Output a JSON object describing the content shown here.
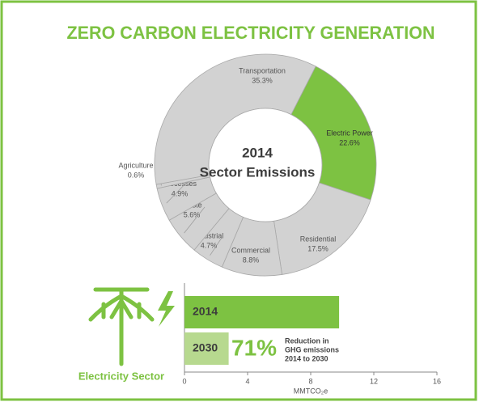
{
  "title": "ZERO CARBON ELECTRICITY GENERATION",
  "chart_data": [
    {
      "type": "pie",
      "center_text": [
        "2014",
        "Sector Emissions"
      ],
      "categories": [
        "Electric Power",
        "Residential",
        "Commercial",
        "Industrial",
        "Waste",
        "Industrial Processes",
        "Agriculture",
        "Transportation"
      ],
      "values": [
        22.6,
        17.5,
        8.8,
        4.7,
        5.6,
        4.9,
        0.6,
        35.3
      ],
      "value_labels": [
        "22.6%",
        "17.5%",
        "8.8%",
        "4.7%",
        "5.6%",
        "4.9%",
        "0.6%",
        "35.3%"
      ],
      "colors": [
        "#7dc242",
        "#d2d2d2",
        "#d2d2d2",
        "#d2d2d2",
        "#d2d2d2",
        "#d2d2d2",
        "#d2d2d2",
        "#d2d2d2"
      ]
    },
    {
      "type": "hbar",
      "title": "Electricity Sector",
      "categories": [
        "2014",
        "2030"
      ],
      "values": [
        9.8,
        2.8
      ],
      "colors": [
        "#7dc242",
        "#b7d98f"
      ],
      "xlim": [
        0,
        16
      ],
      "xticks": [
        0,
        4,
        8,
        12,
        16
      ],
      "xlabel": "MMTCO₂e",
      "annotation": {
        "big": "71%",
        "lines": [
          "Reduction in",
          "GHG emissions",
          "2014 to 2030"
        ]
      }
    }
  ]
}
